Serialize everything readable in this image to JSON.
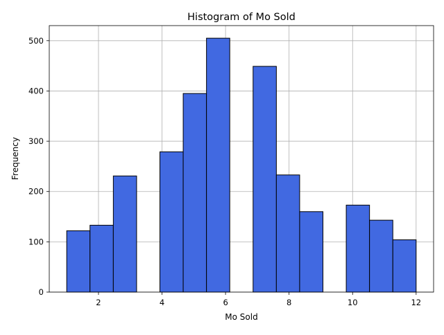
{
  "chart_data": {
    "type": "bar",
    "title": "Histogram of Mo Sold",
    "xlabel": "Mo Sold",
    "ylabel": "Frequency",
    "bins": [
      {
        "start": 1.0,
        "end": 1.733,
        "count": 122
      },
      {
        "start": 1.733,
        "end": 2.467,
        "count": 133
      },
      {
        "start": 2.467,
        "end": 3.2,
        "count": 231
      },
      {
        "start": 3.2,
        "end": 3.933,
        "count": 0
      },
      {
        "start": 3.933,
        "end": 4.667,
        "count": 279
      },
      {
        "start": 4.667,
        "end": 5.4,
        "count": 395
      },
      {
        "start": 5.4,
        "end": 6.133,
        "count": 505
      },
      {
        "start": 6.133,
        "end": 6.867,
        "count": 0
      },
      {
        "start": 6.867,
        "end": 7.6,
        "count": 449
      },
      {
        "start": 7.6,
        "end": 8.333,
        "count": 233
      },
      {
        "start": 8.333,
        "end": 9.067,
        "count": 160
      },
      {
        "start": 9.067,
        "end": 9.8,
        "count": 0
      },
      {
        "start": 9.8,
        "end": 10.533,
        "count": 173
      },
      {
        "start": 10.533,
        "end": 11.267,
        "count": 143
      },
      {
        "start": 11.267,
        "end": 12.0,
        "count": 104
      }
    ],
    "xlim": [
      0.45,
      12.55
    ],
    "ylim": [
      0,
      530
    ],
    "xticks": [
      2,
      4,
      6,
      8,
      10,
      12
    ],
    "yticks": [
      0,
      100,
      200,
      300,
      400,
      500
    ],
    "grid": true,
    "bar_color": "#4169e1",
    "edge_color": "#000000"
  }
}
